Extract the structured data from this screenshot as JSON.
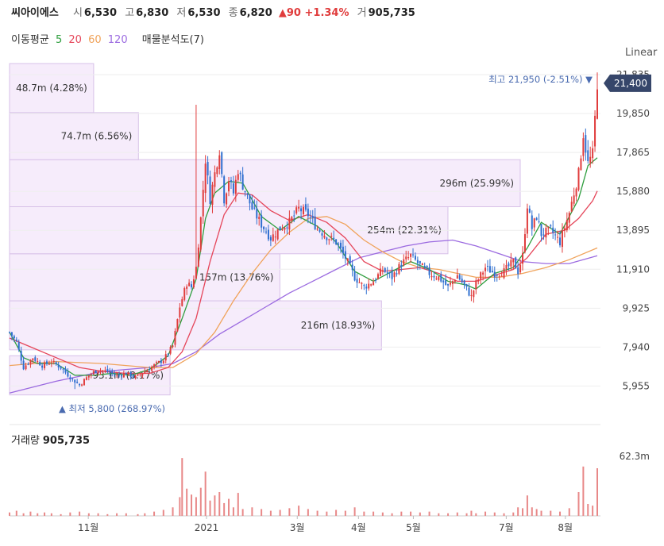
{
  "header": {
    "name": "씨아이에스",
    "open_label": "시",
    "open": "6,530",
    "high_label": "고",
    "high": "6,830",
    "low_label": "저",
    "low": "6,530",
    "close_label": "종",
    "close": "6,820",
    "change": "▲90 +1.34%",
    "volume_label": "거",
    "volume": "905,735"
  },
  "ma_legend": {
    "label": "이동평균",
    "p5": "5",
    "p20": "20",
    "p60": "60",
    "p120": "120",
    "vp_label": "매물분석도(7)"
  },
  "scale_label": "Linear",
  "volume_header": {
    "label": "거래량",
    "value": "905,735"
  },
  "colors": {
    "up": "#e03c3c",
    "down": "#2f6fd0",
    "ma5": "#2e9e3e",
    "ma20": "#e5465a",
    "ma60": "#f0a35b",
    "ma120": "#9b6ae0",
    "vp_fill": "#f6ecfb",
    "vp_stroke": "#d7c1e8"
  },
  "chart_data": {
    "type": "candlestick",
    "y_axis_ticks": [
      "5,955",
      "7,940",
      "9,925",
      "11,910",
      "13,895",
      "15,880",
      "17,865",
      "19,850",
      "21,835"
    ],
    "ylim": [
      5000,
      22000
    ],
    "x_axis_ticks": [
      "11월",
      "2021",
      "3월",
      "4월",
      "5월",
      "7월",
      "8월"
    ],
    "last_price_badge": "21,400",
    "max_annotation": {
      "label": "최고",
      "value": "21,950 (-2.51%)"
    },
    "min_annotation": {
      "label": "최저",
      "value": "5,800 (268.97%)"
    },
    "volume_profile": [
      {
        "label": "93.1m (8.17%)",
        "price_from": 5500,
        "price_to": 7500,
        "pct": 8.17
      },
      {
        "label": "216m (18.93%)",
        "price_from": 7800,
        "price_to": 10300,
        "pct": 18.93
      },
      {
        "label": "157m (13.76%)",
        "price_from": 10300,
        "price_to": 12700,
        "pct": 13.76
      },
      {
        "label": "254m (22.31%)",
        "price_from": 12700,
        "price_to": 15100,
        "pct": 22.31
      },
      {
        "label": "296m (25.99%)",
        "price_from": 15100,
        "price_to": 17500,
        "pct": 25.99
      },
      {
        "label": "74.7m (6.56%)",
        "price_from": 17500,
        "price_to": 19900,
        "pct": 6.56
      },
      {
        "label": "48.7m (4.28%)",
        "price_from": 19900,
        "price_to": 22400,
        "pct": 4.28
      }
    ],
    "volume_axis_tick": "62.3m",
    "price_path": [
      [
        0,
        8700
      ],
      [
        3,
        8200
      ],
      [
        6,
        6900
      ],
      [
        10,
        7400
      ],
      [
        14,
        7000
      ],
      [
        18,
        7200
      ],
      [
        22,
        6900
      ],
      [
        26,
        6400
      ],
      [
        30,
        6000
      ],
      [
        34,
        6500
      ],
      [
        38,
        6800
      ],
      [
        42,
        6700
      ],
      [
        46,
        6500
      ],
      [
        50,
        6600
      ],
      [
        54,
        6400
      ],
      [
        58,
        6700
      ],
      [
        62,
        7000
      ],
      [
        66,
        7300
      ],
      [
        70,
        8000
      ],
      [
        73,
        10000
      ],
      [
        76,
        11200
      ],
      [
        78,
        11000
      ],
      [
        80,
        12000
      ],
      [
        82,
        14500
      ],
      [
        84,
        17500
      ],
      [
        86,
        15500
      ],
      [
        88,
        16800
      ],
      [
        90,
        18000
      ],
      [
        92,
        15500
      ],
      [
        94,
        16500
      ],
      [
        96,
        15800
      ],
      [
        98,
        17000
      ],
      [
        100,
        16200
      ],
      [
        104,
        15000
      ],
      [
        108,
        14200
      ],
      [
        112,
        13500
      ],
      [
        116,
        14000
      ],
      [
        120,
        14300
      ],
      [
        124,
        15000
      ],
      [
        128,
        14700
      ],
      [
        132,
        14000
      ],
      [
        136,
        13600
      ],
      [
        140,
        13300
      ],
      [
        144,
        12500
      ],
      [
        148,
        11500
      ],
      [
        152,
        11000
      ],
      [
        156,
        11300
      ],
      [
        160,
        11900
      ],
      [
        164,
        11500
      ],
      [
        168,
        12200
      ],
      [
        172,
        12600
      ],
      [
        176,
        12100
      ],
      [
        180,
        11700
      ],
      [
        184,
        11500
      ],
      [
        188,
        11000
      ],
      [
        192,
        11600
      ],
      [
        196,
        10900
      ],
      [
        198,
        10500
      ],
      [
        200,
        11200
      ],
      [
        204,
        12000
      ],
      [
        208,
        11700
      ],
      [
        212,
        11800
      ],
      [
        216,
        12300
      ],
      [
        218,
        11800
      ],
      [
        220,
        12600
      ],
      [
        222,
        15200
      ],
      [
        224,
        14000
      ],
      [
        226,
        14600
      ],
      [
        228,
        13700
      ],
      [
        232,
        13900
      ],
      [
        236,
        13300
      ],
      [
        240,
        14800
      ],
      [
        244,
        16800
      ],
      [
        246,
        18800
      ],
      [
        248,
        17300
      ],
      [
        250,
        17800
      ],
      [
        252,
        21400
      ]
    ],
    "ma5": [
      [
        0,
        8700
      ],
      [
        6,
        7400
      ],
      [
        12,
        7100
      ],
      [
        20,
        7100
      ],
      [
        28,
        6500
      ],
      [
        36,
        6500
      ],
      [
        44,
        6600
      ],
      [
        52,
        6500
      ],
      [
        60,
        6800
      ],
      [
        68,
        7500
      ],
      [
        74,
        9400
      ],
      [
        80,
        11400
      ],
      [
        84,
        14500
      ],
      [
        88,
        15800
      ],
      [
        94,
        16400
      ],
      [
        100,
        16300
      ],
      [
        108,
        14600
      ],
      [
        116,
        13900
      ],
      [
        124,
        14600
      ],
      [
        132,
        14100
      ],
      [
        140,
        13300
      ],
      [
        148,
        11800
      ],
      [
        156,
        11300
      ],
      [
        164,
        11800
      ],
      [
        172,
        12300
      ],
      [
        180,
        11900
      ],
      [
        188,
        11300
      ],
      [
        196,
        11100
      ],
      [
        200,
        10900
      ],
      [
        208,
        11700
      ],
      [
        216,
        12000
      ],
      [
        222,
        13000
      ],
      [
        228,
        14300
      ],
      [
        236,
        13700
      ],
      [
        244,
        15500
      ],
      [
        248,
        17200
      ],
      [
        252,
        17600
      ]
    ],
    "ma20": [
      [
        0,
        8400
      ],
      [
        10,
        7900
      ],
      [
        20,
        7400
      ],
      [
        30,
        6900
      ],
      [
        40,
        6700
      ],
      [
        50,
        6600
      ],
      [
        60,
        6600
      ],
      [
        68,
        6900
      ],
      [
        74,
        7700
      ],
      [
        80,
        9400
      ],
      [
        86,
        12300
      ],
      [
        92,
        14700
      ],
      [
        98,
        15800
      ],
      [
        104,
        15700
      ],
      [
        112,
        14900
      ],
      [
        120,
        14400
      ],
      [
        128,
        14700
      ],
      [
        136,
        14300
      ],
      [
        144,
        13500
      ],
      [
        152,
        12300
      ],
      [
        160,
        11800
      ],
      [
        168,
        11900
      ],
      [
        176,
        12000
      ],
      [
        184,
        11700
      ],
      [
        192,
        11300
      ],
      [
        200,
        11300
      ],
      [
        208,
        11600
      ],
      [
        216,
        11900
      ],
      [
        222,
        12500
      ],
      [
        230,
        13700
      ],
      [
        238,
        13900
      ],
      [
        244,
        14500
      ],
      [
        250,
        15400
      ],
      [
        252,
        15900
      ]
    ],
    "ma60": [
      [
        0,
        7000
      ],
      [
        20,
        7200
      ],
      [
        40,
        7100
      ],
      [
        60,
        6900
      ],
      [
        70,
        6900
      ],
      [
        80,
        7600
      ],
      [
        88,
        8700
      ],
      [
        96,
        10300
      ],
      [
        104,
        11700
      ],
      [
        112,
        12900
      ],
      [
        120,
        13800
      ],
      [
        128,
        14500
      ],
      [
        136,
        14600
      ],
      [
        144,
        14200
      ],
      [
        152,
        13400
      ],
      [
        160,
        12800
      ],
      [
        168,
        12300
      ],
      [
        176,
        12000
      ],
      [
        184,
        11900
      ],
      [
        192,
        11700
      ],
      [
        200,
        11500
      ],
      [
        210,
        11500
      ],
      [
        220,
        11700
      ],
      [
        230,
        12000
      ],
      [
        240,
        12400
      ],
      [
        252,
        13000
      ]
    ],
    "ma120": [
      [
        0,
        5600
      ],
      [
        20,
        6200
      ],
      [
        40,
        6700
      ],
      [
        60,
        6900
      ],
      [
        70,
        7100
      ],
      [
        80,
        7700
      ],
      [
        90,
        8600
      ],
      [
        100,
        9300
      ],
      [
        110,
        10000
      ],
      [
        120,
        10700
      ],
      [
        130,
        11300
      ],
      [
        140,
        11900
      ],
      [
        150,
        12500
      ],
      [
        160,
        12800
      ],
      [
        170,
        13100
      ],
      [
        180,
        13300
      ],
      [
        190,
        13400
      ],
      [
        200,
        13100
      ],
      [
        210,
        12700
      ],
      [
        220,
        12300
      ],
      [
        230,
        12200
      ],
      [
        240,
        12200
      ],
      [
        252,
        12600
      ]
    ],
    "volume": [
      [
        0,
        4
      ],
      [
        3,
        6
      ],
      [
        6,
        3
      ],
      [
        9,
        5
      ],
      [
        12,
        3
      ],
      [
        15,
        4
      ],
      [
        18,
        3
      ],
      [
        22,
        2
      ],
      [
        26,
        4
      ],
      [
        30,
        5
      ],
      [
        34,
        3
      ],
      [
        38,
        3
      ],
      [
        42,
        2
      ],
      [
        46,
        3
      ],
      [
        50,
        3
      ],
      [
        55,
        2
      ],
      [
        58,
        3
      ],
      [
        62,
        5
      ],
      [
        66,
        7
      ],
      [
        70,
        10
      ],
      [
        73,
        22
      ],
      [
        74,
        68
      ],
      [
        76,
        32
      ],
      [
        78,
        25
      ],
      [
        80,
        22
      ],
      [
        82,
        33
      ],
      [
        84,
        52
      ],
      [
        86,
        18
      ],
      [
        88,
        24
      ],
      [
        90,
        28
      ],
      [
        92,
        15
      ],
      [
        94,
        20
      ],
      [
        96,
        10
      ],
      [
        98,
        27
      ],
      [
        100,
        8
      ],
      [
        104,
        10
      ],
      [
        108,
        8
      ],
      [
        112,
        6
      ],
      [
        116,
        7
      ],
      [
        120,
        9
      ],
      [
        124,
        12
      ],
      [
        128,
        8
      ],
      [
        132,
        6
      ],
      [
        136,
        5
      ],
      [
        140,
        7
      ],
      [
        144,
        6
      ],
      [
        148,
        10
      ],
      [
        152,
        5
      ],
      [
        156,
        5
      ],
      [
        160,
        4
      ],
      [
        164,
        3
      ],
      [
        168,
        5
      ],
      [
        172,
        5
      ],
      [
        176,
        4
      ],
      [
        180,
        5
      ],
      [
        184,
        3
      ],
      [
        188,
        3
      ],
      [
        192,
        4
      ],
      [
        196,
        3
      ],
      [
        198,
        6
      ],
      [
        200,
        3
      ],
      [
        204,
        5
      ],
      [
        208,
        4
      ],
      [
        212,
        3
      ],
      [
        216,
        4
      ],
      [
        218,
        10
      ],
      [
        220,
        9
      ],
      [
        222,
        24
      ],
      [
        224,
        10
      ],
      [
        226,
        8
      ],
      [
        228,
        6
      ],
      [
        232,
        6
      ],
      [
        236,
        5
      ],
      [
        240,
        9
      ],
      [
        244,
        28
      ],
      [
        246,
        58
      ],
      [
        248,
        14
      ],
      [
        250,
        12
      ],
      [
        252,
        56
      ]
    ]
  }
}
